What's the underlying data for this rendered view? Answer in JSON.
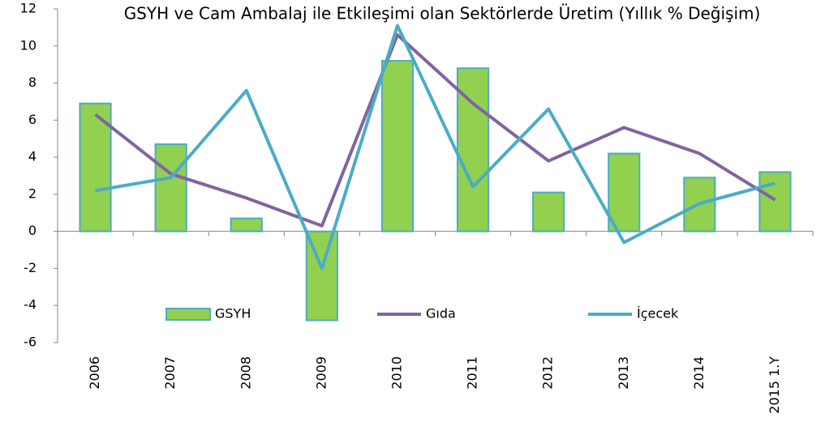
{
  "chart_data": {
    "type": "bar-line",
    "title": "GSYH ve Cam Ambalaj ile Etkileşimi olan Sektörlerde Üretim (Yıllık % Değişim)",
    "categories": [
      "2006",
      "2007",
      "2008",
      "2009",
      "2010",
      "2011",
      "2012",
      "2013",
      "2014",
      "2015 1.Y"
    ],
    "series": [
      {
        "name": "GSYH",
        "type": "bar",
        "color": "#92d050",
        "border_color": "#4bacc6",
        "values": [
          6.9,
          4.7,
          0.7,
          -4.8,
          9.2,
          8.8,
          2.1,
          4.2,
          2.9,
          3.2
        ]
      },
      {
        "name": "Gıda",
        "type": "line",
        "color": "#8064a2",
        "values": [
          6.3,
          3.1,
          1.8,
          0.3,
          10.6,
          6.9,
          3.8,
          5.6,
          4.2,
          1.7
        ]
      },
      {
        "name": "İçecek",
        "type": "line",
        "color": "#4bacc6",
        "values": [
          2.2,
          2.9,
          7.6,
          -2.0,
          11.1,
          2.4,
          6.6,
          -0.6,
          1.5,
          2.6
        ]
      }
    ],
    "ylim": [
      -6,
      12
    ],
    "yticks": [
      -6,
      -4,
      -2,
      0,
      2,
      4,
      6,
      8,
      10,
      12
    ],
    "grid": false,
    "legend": "bottom"
  }
}
